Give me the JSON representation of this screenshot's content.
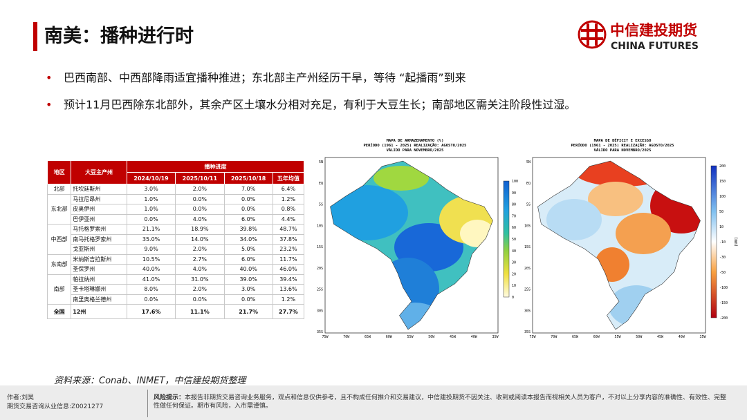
{
  "header": {
    "title": "南美：播种进行时"
  },
  "logo": {
    "name": "中信建投期货",
    "english": "CHINA FUTURES"
  },
  "bullets": [
    "巴西南部、中西部降雨适宜播种推进；东北部主产州经历干旱，等待 “起播雨”到来",
    "预计11月巴西除东北部外，其余产区土壤水分相对充足，有利于大豆生长；南部地区需关注阶段性过湿。"
  ],
  "table": {
    "columns": [
      "地区",
      "大豆主产州",
      "播种进度"
    ],
    "dates": [
      "2024/10/19",
      "2025/10/11",
      "2025/10/18",
      "五年均值"
    ],
    "groups": [
      {
        "region": "北部",
        "rows": [
          [
            "托坎廷斯州",
            "3.0%",
            "2.0%",
            "7.0%",
            "6.4%"
          ]
        ]
      },
      {
        "region": "东北部",
        "rows": [
          [
            "马拉尼昂州",
            "1.0%",
            "0.0%",
            "0.0%",
            "1.2%"
          ],
          [
            "皮奥伊州",
            "1.0%",
            "0.0%",
            "0.0%",
            "0.8%"
          ],
          [
            "巴伊亚州",
            "0.0%",
            "4.0%",
            "6.0%",
            "4.4%"
          ]
        ]
      },
      {
        "region": "中西部",
        "rows": [
          [
            "马托格罗索州",
            "21.1%",
            "18.9%",
            "39.8%",
            "48.7%"
          ],
          [
            "南马托格罗索州",
            "35.0%",
            "14.0%",
            "34.0%",
            "37.8%"
          ],
          [
            "戈亚斯州",
            "9.0%",
            "2.0%",
            "5.0%",
            "23.2%"
          ]
        ]
      },
      {
        "region": "东南部",
        "rows": [
          [
            "米纳斯吉拉斯州",
            "10.5%",
            "2.7%",
            "6.0%",
            "11.7%"
          ],
          [
            "圣保罗州",
            "40.0%",
            "4.0%",
            "40.0%",
            "46.0%"
          ]
        ]
      },
      {
        "region": "南部",
        "rows": [
          [
            "帕拉纳州",
            "41.0%",
            "31.0%",
            "39.0%",
            "39.4%"
          ],
          [
            "圣卡塔琳娜州",
            "8.0%",
            "2.0%",
            "3.0%",
            "13.6%"
          ],
          [
            "南里奥格兰德州",
            "0.0%",
            "0.0%",
            "0.0%",
            "1.2%"
          ]
        ]
      }
    ],
    "total": {
      "region": "全国",
      "cells": [
        "12州",
        "17.6%",
        "11.1%",
        "21.7%",
        "27.7%"
      ]
    }
  },
  "maps": [
    {
      "title_lines": [
        "MAPA DE ARMAZENAMENTO (%)",
        "PERÍODO (1961 - 2025) REALIZAÇÃO: AGOSTO/2025",
        "VÁLIDO PARA NOVEMBRO/2025"
      ],
      "lat_labels": [
        "5N",
        "EQ",
        "5S",
        "10S",
        "15S",
        "20S",
        "25S",
        "30S",
        "35S"
      ],
      "lon_labels": [
        "75W",
        "70W",
        "65W",
        "60W",
        "55W",
        "50W",
        "45W",
        "40W",
        "35W"
      ],
      "colorbar_labels": [
        "100",
        "90",
        "80",
        "70",
        "60",
        "50",
        "40",
        "30",
        "20",
        "10",
        "0"
      ]
    },
    {
      "title_lines": [
        "MAPA DE DÉFICIT E EXCESSO",
        "PERÍODO (1961 - 2025) REALIZAÇÃO: AGOSTO/2025",
        "VÁLIDO PARA NOVEMBRO/2025"
      ],
      "lat_labels": [
        "5N",
        "EQ",
        "5S",
        "10S",
        "15S",
        "20S",
        "25S",
        "30S",
        "35S"
      ],
      "lon_labels": [
        "75W",
        "70W",
        "65W",
        "60W",
        "55W",
        "50W",
        "45W",
        "40W",
        "35W"
      ],
      "colorbar_labels": [
        "200",
        "150",
        "100",
        "50",
        "10",
        "-10",
        "-30",
        "-50",
        "-100",
        "-150",
        "-200"
      ],
      "unit": "(mm)"
    }
  ],
  "source": "资料来源：Conab、INMET，中信建投期货整理",
  "footer": {
    "author": "作者:刘昊",
    "license": "期货交易咨询从业信息:Z0021277",
    "risk_label": "风险提示：",
    "risk_text": "本报告非期货交易咨询业务服务，观点和信息仅供参考，且不构成任何推介和交易建议，中信建投期货不因关注、收到或阅读本报告而视相关人员为客户，不对以上分享内容的准确性、有效性、完整性做任何保证。期市有风险，入市需谨慎。"
  }
}
